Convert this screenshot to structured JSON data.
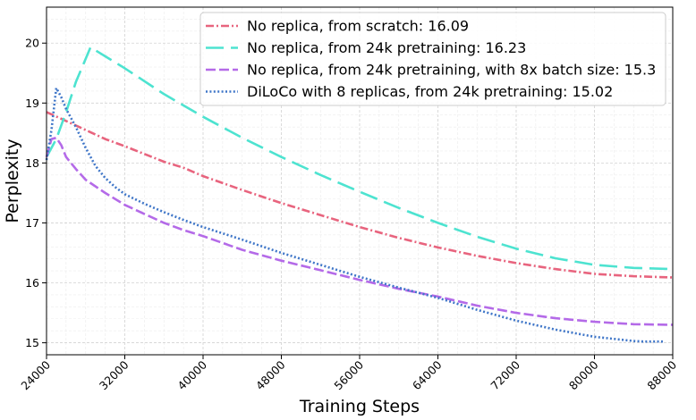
{
  "chart_data": {
    "type": "line",
    "title": "",
    "xlabel": "Training Steps",
    "ylabel": "Perplexity",
    "xlim": [
      24000,
      88000
    ],
    "ylim": [
      14.8,
      20.6
    ],
    "x_ticks": [
      24000,
      32000,
      40000,
      48000,
      56000,
      64000,
      72000,
      80000,
      88000
    ],
    "y_ticks": [
      15,
      16,
      17,
      18,
      19,
      20
    ],
    "grid": true,
    "legend_position": "top-right",
    "series": [
      {
        "name": "No replica, from scratch: 16.09",
        "color": "#e8647e",
        "dash": "dashdot",
        "x": [
          24000,
          26000,
          28000,
          30000,
          32000,
          34000,
          36000,
          38000,
          40000,
          44000,
          48000,
          52000,
          56000,
          60000,
          64000,
          68000,
          72000,
          76000,
          80000,
          84000,
          88000
        ],
        "y": [
          18.85,
          18.7,
          18.55,
          18.4,
          18.28,
          18.15,
          18.02,
          17.92,
          17.78,
          17.55,
          17.33,
          17.13,
          16.93,
          16.75,
          16.59,
          16.45,
          16.33,
          16.23,
          16.15,
          16.11,
          16.09
        ]
      },
      {
        "name": "No replica, from 24k pretraining: 16.23",
        "color": "#4de3d0",
        "dash": "longdash",
        "x": [
          24000,
          25000,
          26000,
          27000,
          28500,
          30000,
          32000,
          36000,
          40000,
          44000,
          48000,
          52000,
          56000,
          60000,
          64000,
          68000,
          72000,
          76000,
          80000,
          84000,
          88000
        ],
        "y": [
          18.1,
          18.4,
          18.85,
          19.35,
          19.93,
          19.78,
          19.58,
          19.15,
          18.77,
          18.42,
          18.1,
          17.8,
          17.52,
          17.25,
          17.0,
          16.77,
          16.57,
          16.41,
          16.3,
          16.25,
          16.23
        ]
      },
      {
        "name": "No replica, from 24k pretraining, with 8x batch size: 15.3",
        "color": "#b46ae8",
        "dash": "dashed",
        "x": [
          24000,
          24500,
          25000,
          25500,
          26000,
          27000,
          28000,
          30000,
          32000,
          34000,
          36000,
          38000,
          40000,
          44000,
          48000,
          52000,
          56000,
          60000,
          64000,
          68000,
          72000,
          76000,
          80000,
          84000,
          88000
        ],
        "y": [
          18.1,
          18.4,
          18.42,
          18.3,
          18.1,
          17.9,
          17.72,
          17.5,
          17.3,
          17.15,
          17.0,
          16.88,
          16.78,
          16.55,
          16.37,
          16.21,
          16.05,
          15.9,
          15.77,
          15.62,
          15.5,
          15.41,
          15.35,
          15.31,
          15.3
        ]
      },
      {
        "name": "DiLoCo with 8 replicas, from 24k pretraining: 15.02",
        "color": "#3f76c8",
        "dash": "dotted",
        "x": [
          24000,
          24500,
          25000,
          25500,
          26000,
          27000,
          28000,
          29000,
          30000,
          31000,
          32000,
          34000,
          36000,
          38000,
          40000,
          44000,
          48000,
          52000,
          56000,
          60000,
          64000,
          68000,
          72000,
          76000,
          80000,
          84000,
          85000,
          86000,
          87000
        ],
        "y": [
          18.05,
          18.55,
          19.25,
          19.1,
          18.9,
          18.6,
          18.25,
          17.95,
          17.75,
          17.6,
          17.48,
          17.32,
          17.18,
          17.05,
          16.93,
          16.72,
          16.5,
          16.3,
          16.1,
          15.92,
          15.75,
          15.55,
          15.37,
          15.22,
          15.1,
          15.03,
          15.02,
          15.02,
          15.02
        ]
      }
    ]
  }
}
